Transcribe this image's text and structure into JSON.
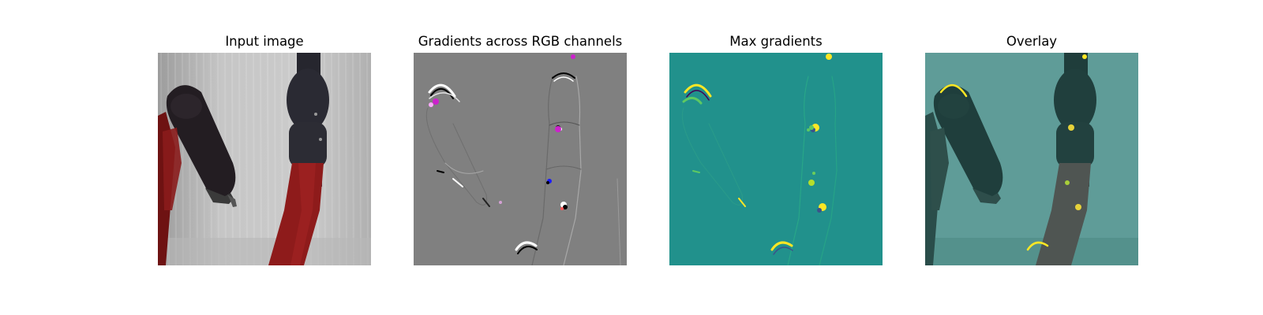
{
  "figure": {
    "panels": [
      {
        "id": "input",
        "title": "Input image",
        "kind": "photo"
      },
      {
        "id": "gradients",
        "title": "Gradients across RGB channels",
        "kind": "gradient-rgb"
      },
      {
        "id": "max",
        "title": "Max gradients",
        "kind": "gradient-max"
      },
      {
        "id": "overlay",
        "title": "Overlay",
        "kind": "overlay"
      }
    ],
    "colors": {
      "background": "#ffffff",
      "cloth": "#c2c2c2",
      "robot_red": "#8a1c1c",
      "robot_dark": "#1f1a1e",
      "gradient_gray": "#808080",
      "viridis_teal": "#21918c",
      "viridis_yellow": "#fde725",
      "viridis_green": "#5ec962",
      "magenta": "#cc22cc"
    }
  }
}
